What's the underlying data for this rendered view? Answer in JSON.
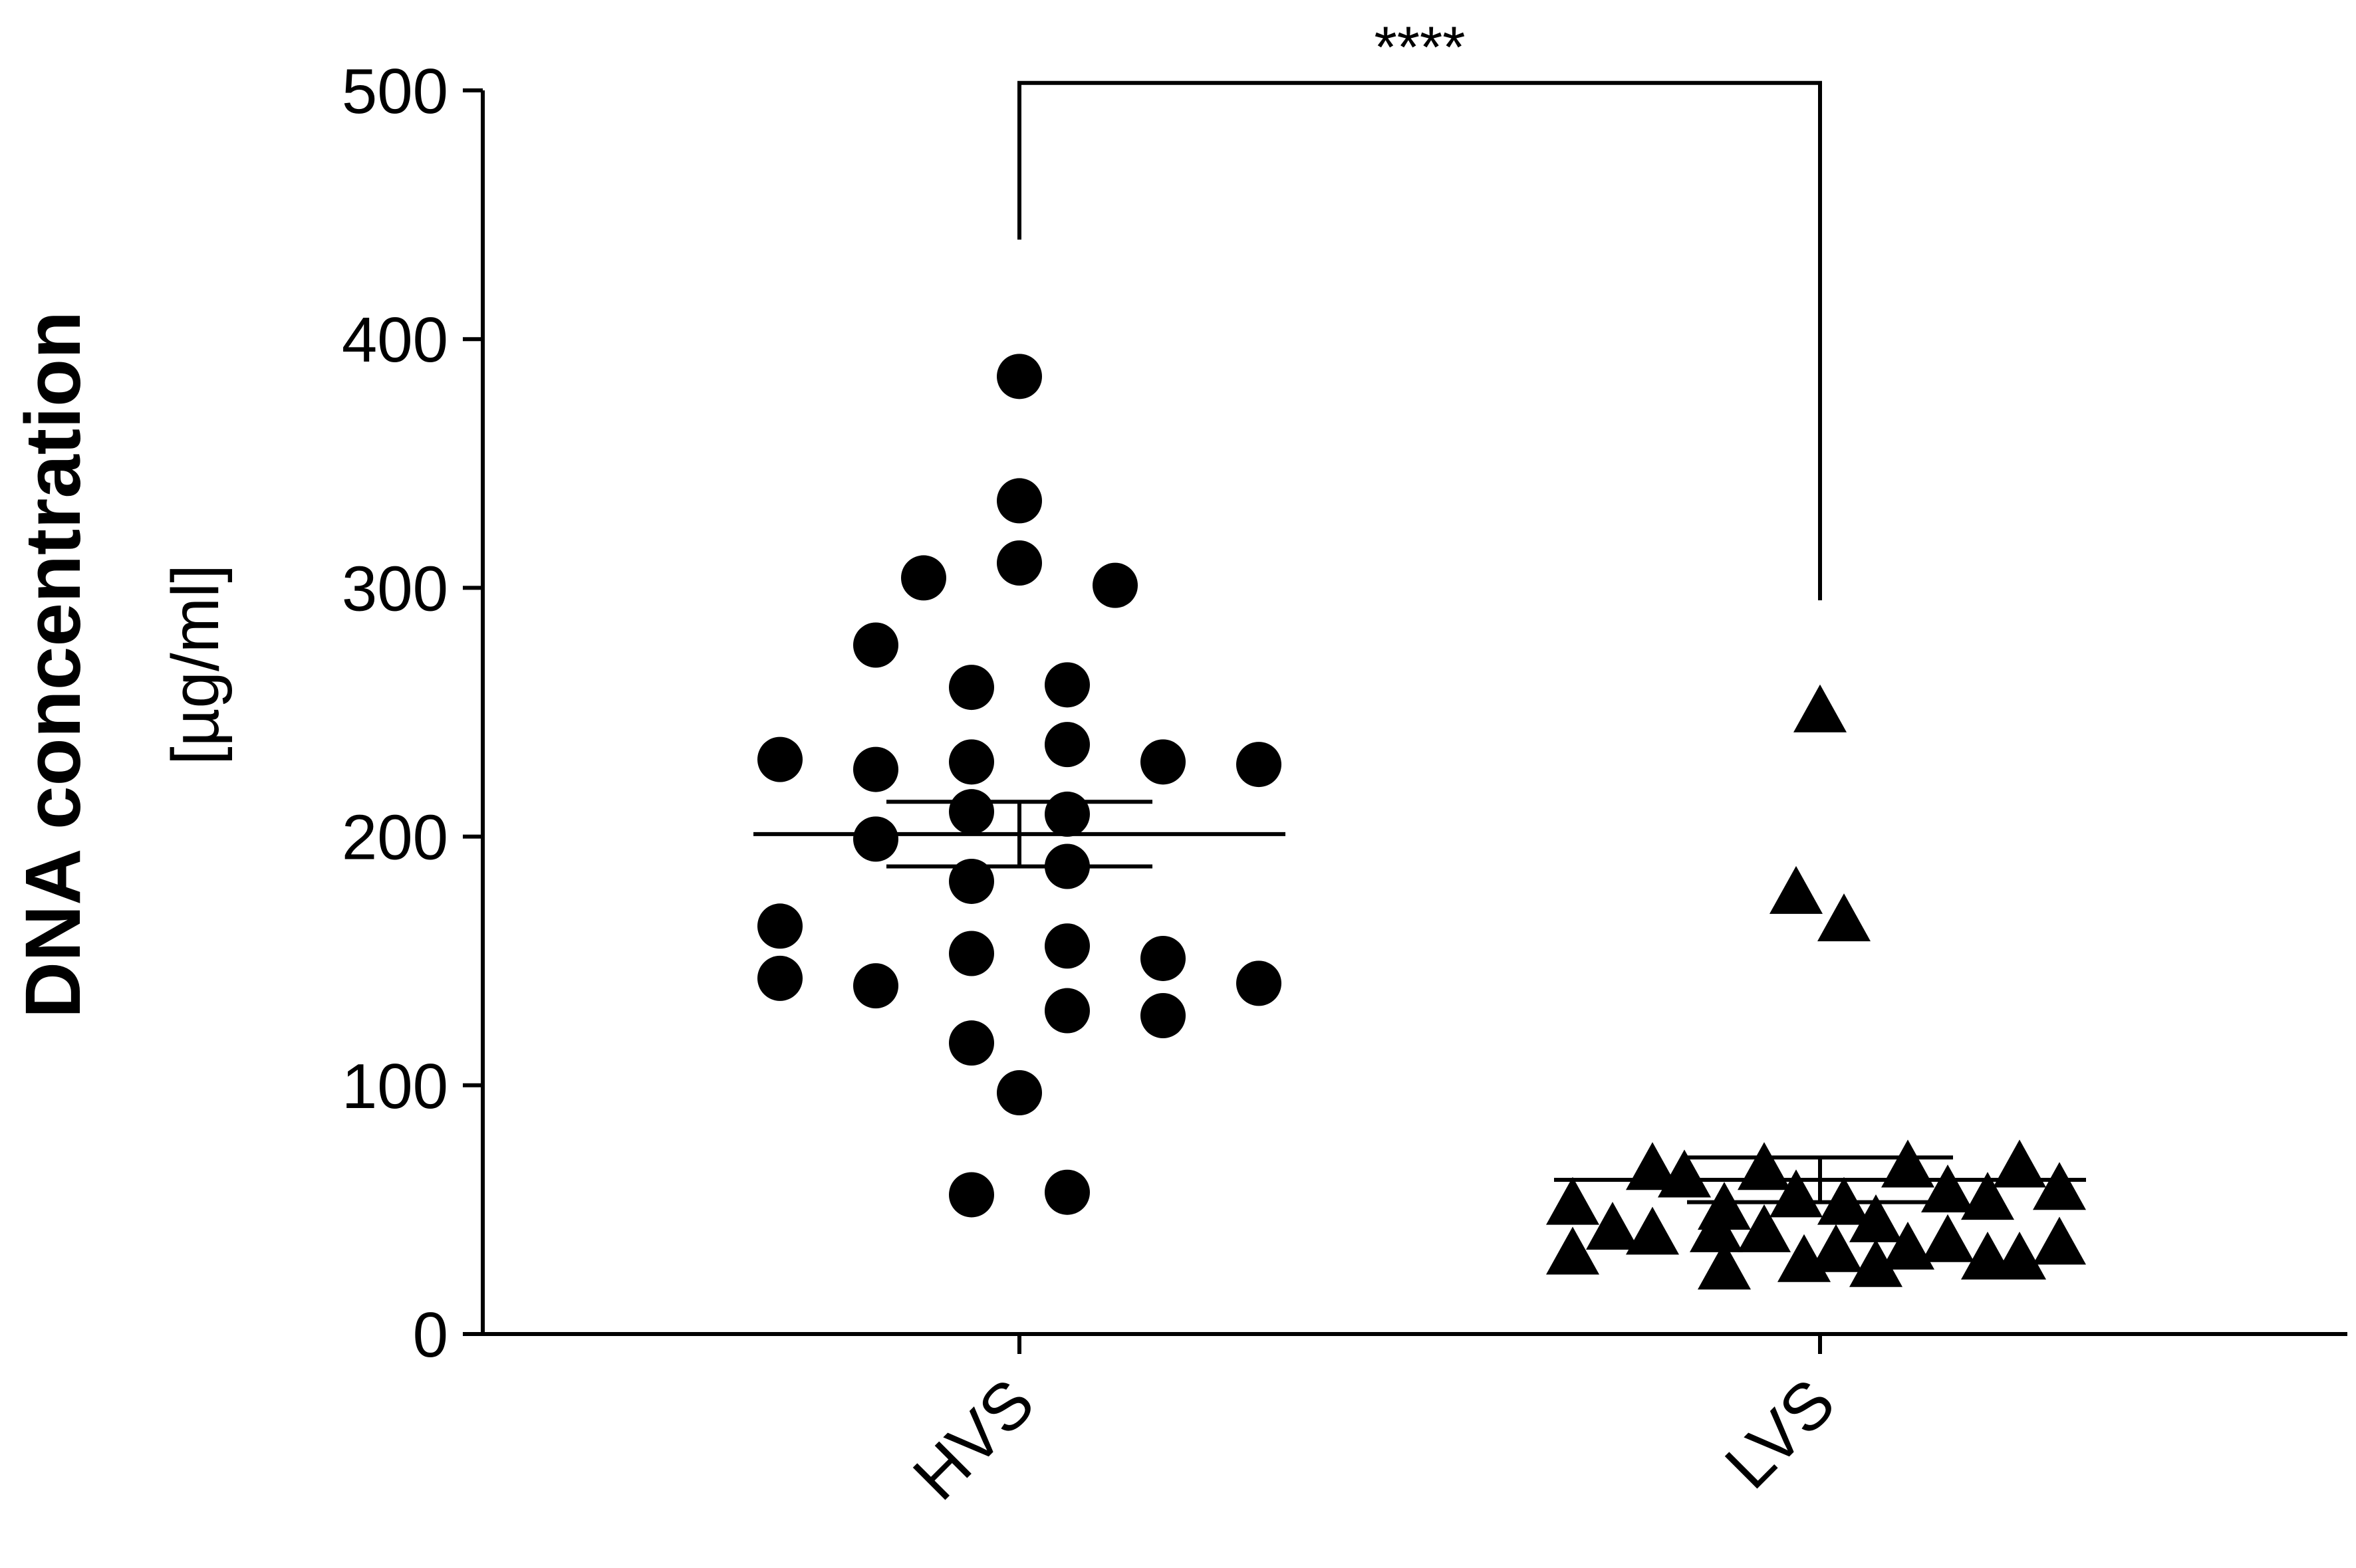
{
  "chart_data": {
    "type": "scatter",
    "title": "",
    "ylabel": "DNA concentration",
    "ylabel_unit": "[µg/ml]",
    "xlabel": "",
    "ylim": [
      0,
      500
    ],
    "yticks": [
      0,
      100,
      200,
      300,
      400,
      500
    ],
    "grid": false,
    "categories": [
      "HVS",
      "LVS"
    ],
    "series": [
      {
        "category": "HVS",
        "marker": "circle",
        "mean": 201,
        "error_high": 214,
        "error_low": 188,
        "points": [
          {
            "x": 0.0,
            "y": 385
          },
          {
            "x": 0.0,
            "y": 335
          },
          {
            "x": 0.0,
            "y": 310
          },
          {
            "x": -0.12,
            "y": 304
          },
          {
            "x": 0.12,
            "y": 301
          },
          {
            "x": -0.18,
            "y": 277
          },
          {
            "x": -0.06,
            "y": 260
          },
          {
            "x": 0.06,
            "y": 261
          },
          {
            "x": -0.3,
            "y": 231
          },
          {
            "x": -0.18,
            "y": 227
          },
          {
            "x": -0.06,
            "y": 230
          },
          {
            "x": 0.06,
            "y": 237
          },
          {
            "x": 0.18,
            "y": 230
          },
          {
            "x": 0.3,
            "y": 229
          },
          {
            "x": -0.06,
            "y": 210
          },
          {
            "x": 0.06,
            "y": 209
          },
          {
            "x": -0.18,
            "y": 199
          },
          {
            "x": 0.06,
            "y": 188
          },
          {
            "x": -0.06,
            "y": 182
          },
          {
            "x": -0.3,
            "y": 164
          },
          {
            "x": -0.06,
            "y": 153
          },
          {
            "x": 0.06,
            "y": 156
          },
          {
            "x": 0.18,
            "y": 151
          },
          {
            "x": -0.3,
            "y": 143
          },
          {
            "x": -0.18,
            "y": 140
          },
          {
            "x": 0.3,
            "y": 141
          },
          {
            "x": 0.06,
            "y": 130
          },
          {
            "x": 0.18,
            "y": 128
          },
          {
            "x": -0.06,
            "y": 117
          },
          {
            "x": 0.0,
            "y": 97
          },
          {
            "x": -0.06,
            "y": 56
          },
          {
            "x": 0.06,
            "y": 57
          }
        ]
      },
      {
        "category": "LVS",
        "marker": "triangle",
        "mean": 62,
        "error_high": 71,
        "error_low": 53,
        "points": [
          {
            "x": 0.0,
            "y": 250
          },
          {
            "x": -0.03,
            "y": 177
          },
          {
            "x": 0.03,
            "y": 166
          },
          {
            "x": -0.21,
            "y": 66
          },
          {
            "x": -0.17,
            "y": 63
          },
          {
            "x": -0.07,
            "y": 66
          },
          {
            "x": 0.11,
            "y": 67
          },
          {
            "x": 0.25,
            "y": 67
          },
          {
            "x": -0.31,
            "y": 52
          },
          {
            "x": -0.12,
            "y": 50
          },
          {
            "x": -0.03,
            "y": 55
          },
          {
            "x": 0.03,
            "y": 52
          },
          {
            "x": 0.16,
            "y": 57
          },
          {
            "x": 0.21,
            "y": 54
          },
          {
            "x": 0.3,
            "y": 58
          },
          {
            "x": -0.26,
            "y": 42
          },
          {
            "x": -0.21,
            "y": 40
          },
          {
            "x": -0.13,
            "y": 41
          },
          {
            "x": -0.07,
            "y": 41
          },
          {
            "x": 0.07,
            "y": 45
          },
          {
            "x": -0.31,
            "y": 32
          },
          {
            "x": -0.12,
            "y": 26
          },
          {
            "x": -0.02,
            "y": 29
          },
          {
            "x": 0.02,
            "y": 33
          },
          {
            "x": 0.07,
            "y": 27
          },
          {
            "x": 0.11,
            "y": 34
          },
          {
            "x": 0.16,
            "y": 37
          },
          {
            "x": 0.21,
            "y": 30
          },
          {
            "x": 0.25,
            "y": 30
          },
          {
            "x": 0.3,
            "y": 36
          }
        ]
      }
    ],
    "significance": {
      "label": "****",
      "between": [
        "HVS",
        "LVS"
      ],
      "bracket_y": 503,
      "left_drop_y": 440,
      "right_drop_y": 295
    }
  }
}
